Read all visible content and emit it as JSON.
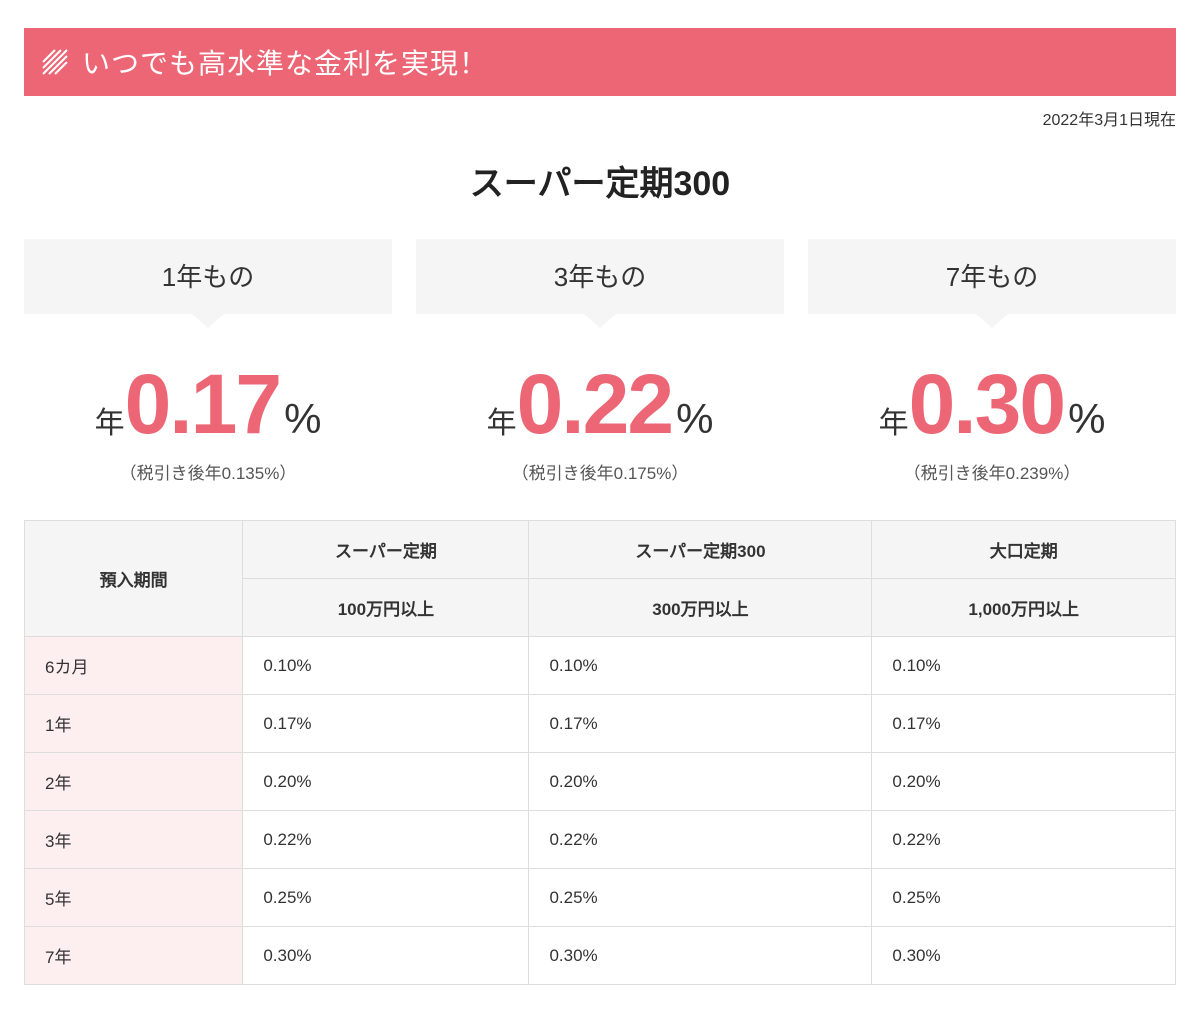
{
  "colors": {
    "accent": "#ed6675",
    "banner_text": "#ffffff",
    "callout_bg": "#f5f5f5",
    "period_col_bg": "#fdeeef",
    "table_border": "#dddddd",
    "table_header_bg": "#f5f5f5",
    "body_text": "#333333"
  },
  "banner": {
    "text": "いつでも高水準な金利を実現！"
  },
  "as_of": "2022年3月1日現在",
  "title": "スーパー定期300",
  "featured": [
    {
      "term": "1年もの",
      "prefix": "年",
      "rate": "0.17",
      "pct": "%",
      "after_tax": "（税引き後年0.135%）"
    },
    {
      "term": "3年もの",
      "prefix": "年",
      "rate": "0.22",
      "pct": "%",
      "after_tax": "（税引き後年0.175%）"
    },
    {
      "term": "7年もの",
      "prefix": "年",
      "rate": "0.30",
      "pct": "%",
      "after_tax": "（税引き後年0.239%）"
    }
  ],
  "table": {
    "head": {
      "period": "預入期間",
      "groups": [
        {
          "top": "スーパー定期",
          "bottom": "100万円以上"
        },
        {
          "top": "スーパー定期300",
          "bottom": "300万円以上"
        },
        {
          "top": "大口定期",
          "bottom": "1,000万円以上"
        }
      ]
    },
    "rows": [
      {
        "period": "6カ月",
        "cells": [
          "0.10%",
          "0.10%",
          "0.10%"
        ]
      },
      {
        "period": "1年",
        "cells": [
          "0.17%",
          "0.17%",
          "0.17%"
        ]
      },
      {
        "period": "2年",
        "cells": [
          "0.20%",
          "0.20%",
          "0.20%"
        ]
      },
      {
        "period": "3年",
        "cells": [
          "0.22%",
          "0.22%",
          "0.22%"
        ]
      },
      {
        "period": "5年",
        "cells": [
          "0.25%",
          "0.25%",
          "0.25%"
        ]
      },
      {
        "period": "7年",
        "cells": [
          "0.30%",
          "0.30%",
          "0.30%"
        ]
      }
    ]
  }
}
